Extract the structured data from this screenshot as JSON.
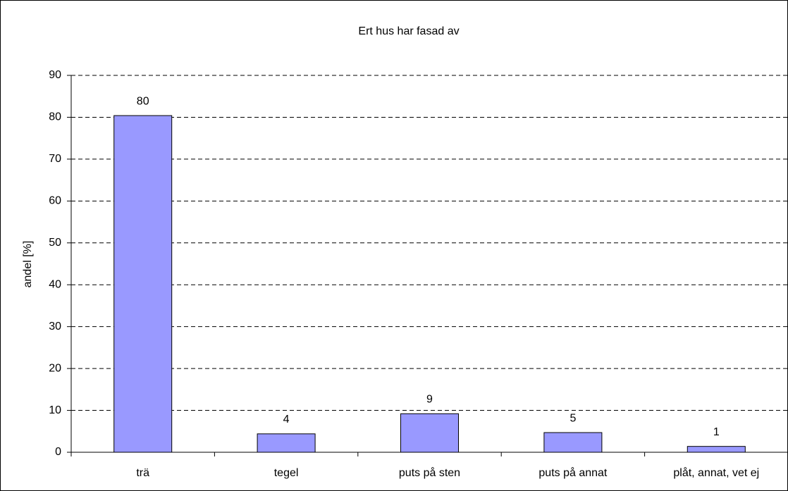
{
  "chart_data": {
    "type": "bar",
    "title": "Ert hus har fasad av",
    "y_label": "andel [%]",
    "categories": [
      "trä",
      "tegel",
      "puts på sten",
      "puts på annat",
      "plåt, annat, vet ej"
    ],
    "values": [
      80.4,
      4.4,
      9.2,
      4.7,
      1.4
    ],
    "value_labels": [
      "80",
      "4",
      "9",
      "5",
      "1"
    ],
    "color": "#9999ff",
    "ylim": [
      0,
      90
    ],
    "yticks": [
      0,
      10,
      20,
      30,
      40,
      50,
      60,
      70,
      80,
      90
    ],
    "grid": true
  }
}
